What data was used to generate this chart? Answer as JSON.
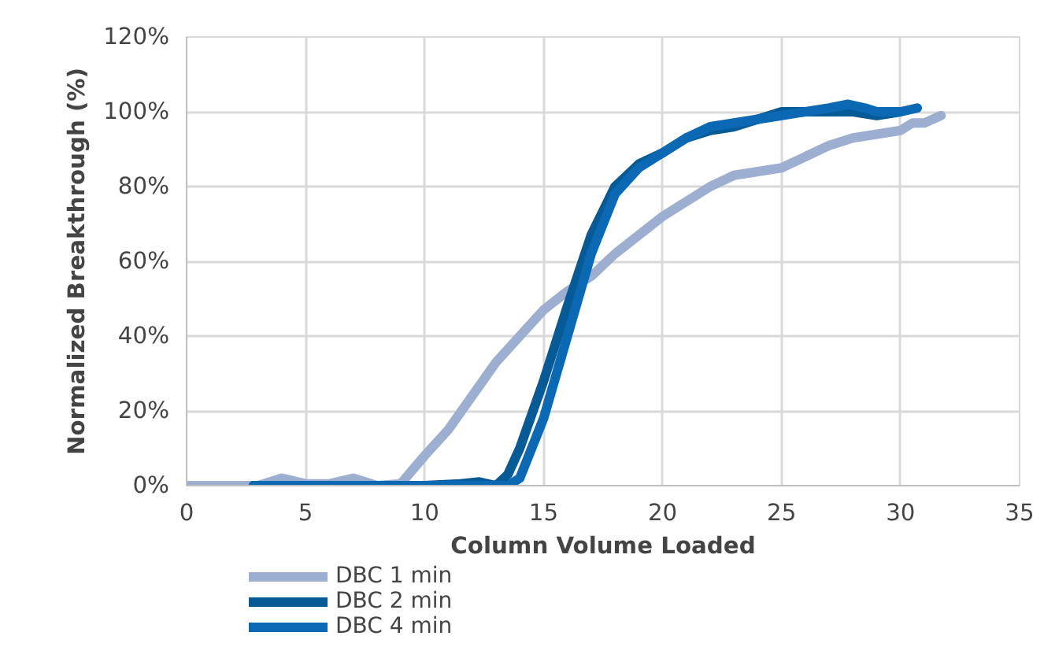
{
  "chart_data": {
    "type": "line",
    "xlabel": "Column Volume Loaded",
    "ylabel": "Normalized Breakthrough (%)",
    "xlim": [
      0,
      35
    ],
    "xticks": [
      0,
      5,
      10,
      15,
      20,
      25,
      30,
      35
    ],
    "ylim": [
      0,
      120
    ],
    "yticks": [
      {
        "value": 0,
        "label": "0%"
      },
      {
        "value": 20,
        "label": "20%"
      },
      {
        "value": 40,
        "label": "40%"
      },
      {
        "value": 60,
        "label": "60%"
      },
      {
        "value": 80,
        "label": "80%"
      },
      {
        "value": 100,
        "label": "100%"
      },
      {
        "value": 120,
        "label": "120%"
      }
    ],
    "grid": true,
    "legend": "bottom left",
    "marker": "none",
    "line_style": "solid",
    "series": [
      {
        "name": "DBC 1 min",
        "color": "#9dafd0",
        "x": [
          0,
          3,
          4,
          5,
          6,
          7,
          8,
          9,
          10,
          11,
          12,
          13,
          14,
          15,
          16,
          17,
          18,
          19,
          20,
          21,
          22,
          23,
          24,
          25,
          26,
          27,
          28,
          29,
          30,
          30.5,
          31,
          31.7
        ],
        "values": [
          0,
          0,
          2,
          0.5,
          0.5,
          2,
          0,
          0.5,
          8,
          15,
          24,
          33,
          40,
          47,
          52,
          56,
          62,
          67,
          72,
          76,
          80,
          83,
          84,
          85,
          88,
          91,
          93,
          94,
          95,
          97,
          97,
          99
        ]
      },
      {
        "name": "DBC 2 min",
        "color": "#065a96",
        "x": [
          2.8,
          10,
          11.5,
          12.3,
          13,
          13.5,
          14,
          15,
          16,
          17,
          18,
          19,
          20,
          21,
          22,
          23,
          24,
          25,
          26,
          27,
          28,
          29,
          30
        ],
        "values": [
          0,
          0,
          0.5,
          1,
          0,
          3,
          10,
          28,
          48,
          67,
          80,
          86,
          89,
          93,
          95,
          96,
          98,
          100,
          100,
          100,
          100,
          99,
          100
        ]
      },
      {
        "name": "DBC 4 min",
        "color": "#0b69b3",
        "x": [
          2.8,
          13.5,
          14,
          15,
          16,
          17,
          18,
          19,
          20,
          21,
          22,
          23,
          24,
          25,
          26,
          27,
          27.8,
          28.5,
          29,
          30,
          30.7
        ],
        "values": [
          0,
          0,
          2,
          18,
          40,
          62,
          78,
          85,
          89,
          93,
          96,
          97,
          98,
          99,
          100,
          101,
          102,
          101,
          100,
          100,
          101
        ]
      }
    ]
  }
}
